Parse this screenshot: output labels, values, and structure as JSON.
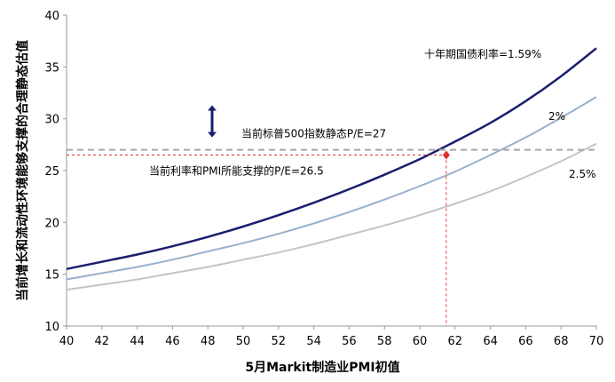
{
  "chart_data": {
    "type": "line",
    "xlabel": "5月Markit制造业PMI初值",
    "ylabel": "当前增长和流动性环境能够支撑的合理静态估值",
    "xlim": [
      40,
      70
    ],
    "ylim": [
      10,
      40
    ],
    "x_ticks": [
      "40",
      "42",
      "44",
      "46",
      "48",
      "50",
      "52",
      "54",
      "56",
      "58",
      "60",
      "62",
      "64",
      "66",
      "68",
      "70"
    ],
    "y_ticks": [
      "10",
      "15",
      "20",
      "25",
      "30",
      "35",
      "40"
    ],
    "grid": false,
    "x": [
      40,
      42,
      44,
      46,
      48,
      50,
      52,
      54,
      56,
      58,
      60,
      62,
      64,
      66,
      68,
      70
    ],
    "series": [
      {
        "name": "十年期国债利率=1.59%",
        "color": "#1a1f6e",
        "values": [
          15.5,
          16.2,
          16.9,
          17.7,
          18.6,
          19.6,
          20.7,
          21.9,
          23.2,
          24.6,
          26.1,
          27.8,
          29.6,
          31.7,
          34.1,
          36.8
        ]
      },
      {
        "name": "2%",
        "color": "#98b0cc",
        "values": [
          14.5,
          15.1,
          15.7,
          16.4,
          17.2,
          18.0,
          18.9,
          19.9,
          21.0,
          22.2,
          23.5,
          24.9,
          26.5,
          28.2,
          30.1,
          32.1
        ]
      },
      {
        "name": "2.5%",
        "color": "#c4c4c4",
        "values": [
          13.5,
          14.0,
          14.5,
          15.1,
          15.7,
          16.4,
          17.1,
          17.9,
          18.8,
          19.7,
          20.7,
          21.8,
          23.0,
          24.4,
          25.9,
          27.6
        ]
      }
    ],
    "reference_lines": {
      "sp500_pe": {
        "y": 27,
        "label": "当前标普500指数静态P/E=27",
        "color": "#a8a8a8"
      },
      "supported_pe": {
        "x": 61.5,
        "y": 26.5,
        "label": "当前利率和PMI所能支撑的P/E=26.5",
        "color": "#e03030"
      }
    },
    "arrow_color": "#1a1f6e"
  }
}
